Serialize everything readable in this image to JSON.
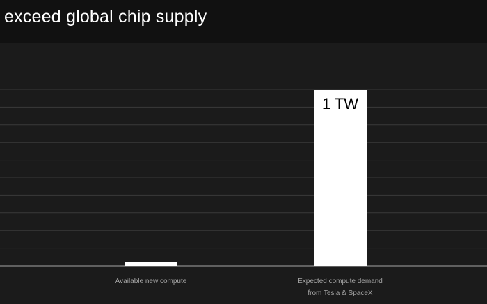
{
  "title": "exceed global chip supply",
  "colors": {
    "background": "#1b1b1b",
    "header": "#111111",
    "bar": "#ffffff",
    "grid": "#3a3a3a",
    "axis": "#8a8a8a",
    "category_text": "#a6a6a6"
  },
  "chart_data": {
    "type": "bar",
    "title": "exceed global chip supply",
    "categories": [
      [
        "Available new compute"
      ],
      [
        "Expected compute demand",
        "from Tesla & SpaceX"
      ]
    ],
    "values": [
      0.02,
      1.0
    ],
    "data_labels": [
      "",
      "1 TW"
    ],
    "ylim": [
      0,
      1.0
    ],
    "grid": true,
    "legend": "none"
  }
}
